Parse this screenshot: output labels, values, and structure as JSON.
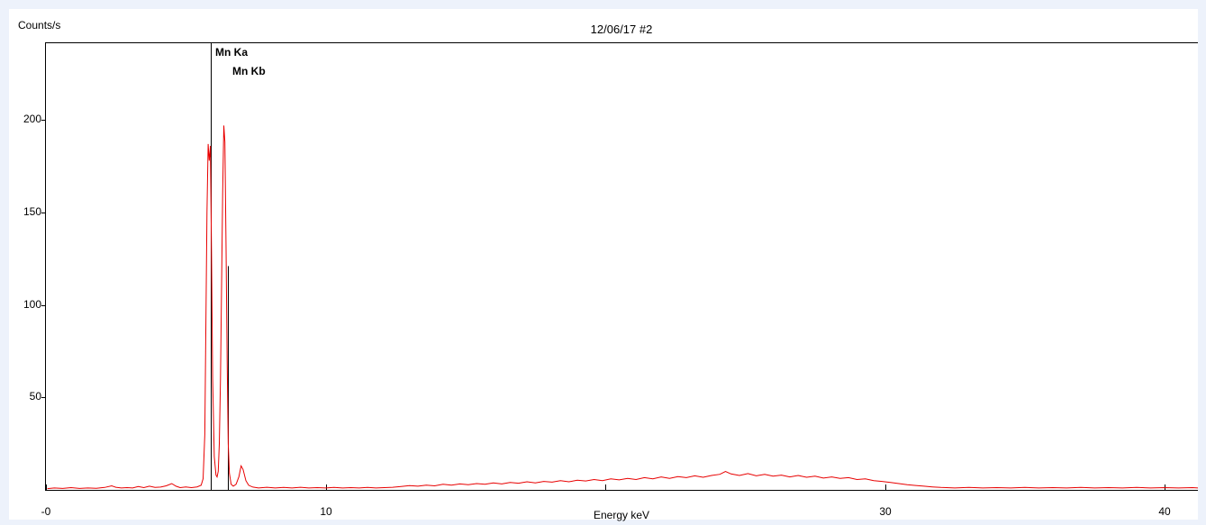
{
  "window": {
    "title": "12/06/17 #2"
  },
  "labels": {
    "y_axis": "Counts/s",
    "x_axis": "Energy keV"
  },
  "colors": {
    "background": "#edf2fb",
    "panel": "#ffffff",
    "axis": "#000000",
    "spectrum_line": "#e80000",
    "marker_line": "#000000",
    "text": "#000000"
  },
  "chart_data": {
    "type": "line",
    "title": "12/06/17 #2",
    "xlabel": "Energy keV",
    "ylabel": "Counts/s",
    "xlim": [
      0,
      41.2
    ],
    "ylim": [
      0,
      242
    ],
    "grid": false,
    "legend": "none",
    "x_ticks": [
      {
        "value": 0,
        "label": "-0"
      },
      {
        "value": 10,
        "label": "10"
      },
      {
        "value": 20,
        "label": ""
      },
      {
        "value": 30,
        "label": "30"
      },
      {
        "value": 40,
        "label": "40"
      }
    ],
    "y_ticks": [
      {
        "value": 50,
        "label": "50"
      },
      {
        "value": 100,
        "label": "100"
      },
      {
        "value": 150,
        "label": "150"
      },
      {
        "value": 200,
        "label": "200"
      }
    ],
    "markers": [
      {
        "label": "Mn Ka",
        "keV": 5.9,
        "top_counts": 242
      },
      {
        "label": "Mn Kb",
        "keV": 6.49,
        "top_counts": 121
      }
    ],
    "series": [
      {
        "name": "spectrum",
        "color": "#e80000",
        "points": [
          [
            0.05,
            0.7
          ],
          [
            0.3,
            1
          ],
          [
            0.6,
            0.8
          ],
          [
            0.9,
            1.2
          ],
          [
            1.2,
            0.8
          ],
          [
            1.5,
            1
          ],
          [
            1.8,
            0.9
          ],
          [
            2.1,
            1.3
          ],
          [
            2.35,
            2.2
          ],
          [
            2.5,
            1.4
          ],
          [
            2.7,
            1
          ],
          [
            2.9,
            1.2
          ],
          [
            3.1,
            1
          ],
          [
            3.3,
            1.8
          ],
          [
            3.5,
            1.2
          ],
          [
            3.7,
            2
          ],
          [
            3.9,
            1.3
          ],
          [
            4.1,
            1.5
          ],
          [
            4.3,
            2.2
          ],
          [
            4.5,
            3.4
          ],
          [
            4.65,
            2
          ],
          [
            4.8,
            1.2
          ],
          [
            5,
            1.6
          ],
          [
            5.2,
            1.2
          ],
          [
            5.4,
            1.6
          ],
          [
            5.55,
            2.5
          ],
          [
            5.62,
            6
          ],
          [
            5.68,
            30
          ],
          [
            5.72,
            90
          ],
          [
            5.76,
            150
          ],
          [
            5.8,
            187
          ],
          [
            5.84,
            178
          ],
          [
            5.88,
            186
          ],
          [
            5.92,
            130
          ],
          [
            5.96,
            60
          ],
          [
            6.02,
            18
          ],
          [
            6.08,
            8
          ],
          [
            6.12,
            7
          ],
          [
            6.16,
            10
          ],
          [
            6.2,
            25
          ],
          [
            6.24,
            60
          ],
          [
            6.28,
            110
          ],
          [
            6.32,
            160
          ],
          [
            6.36,
            197
          ],
          [
            6.4,
            188
          ],
          [
            6.44,
            130
          ],
          [
            6.48,
            70
          ],
          [
            6.52,
            25
          ],
          [
            6.56,
            9
          ],
          [
            6.62,
            3
          ],
          [
            6.7,
            2
          ],
          [
            6.8,
            3
          ],
          [
            6.9,
            7
          ],
          [
            6.98,
            13
          ],
          [
            7.05,
            11
          ],
          [
            7.15,
            5
          ],
          [
            7.25,
            2.5
          ],
          [
            7.4,
            1.5
          ],
          [
            7.6,
            1
          ],
          [
            7.9,
            1.4
          ],
          [
            8.2,
            1
          ],
          [
            8.5,
            1.3
          ],
          [
            8.8,
            1
          ],
          [
            9.1,
            1.4
          ],
          [
            9.4,
            1
          ],
          [
            9.7,
            1.2
          ],
          [
            10,
            1
          ],
          [
            10.3,
            1.3
          ],
          [
            10.6,
            1
          ],
          [
            10.9,
            1.2
          ],
          [
            11.2,
            1
          ],
          [
            11.5,
            1.3
          ],
          [
            11.8,
            1
          ],
          [
            12.1,
            1.2
          ],
          [
            12.4,
            1.4
          ],
          [
            12.7,
            1.8
          ],
          [
            13,
            2.3
          ],
          [
            13.3,
            2
          ],
          [
            13.6,
            2.6
          ],
          [
            13.9,
            2.2
          ],
          [
            14.2,
            3
          ],
          [
            14.5,
            2.6
          ],
          [
            14.8,
            3.2
          ],
          [
            15.1,
            2.8
          ],
          [
            15.4,
            3.4
          ],
          [
            15.7,
            3
          ],
          [
            16,
            3.8
          ],
          [
            16.3,
            3.2
          ],
          [
            16.6,
            4
          ],
          [
            16.9,
            3.6
          ],
          [
            17.2,
            4.4
          ],
          [
            17.5,
            3.8
          ],
          [
            17.8,
            4.6
          ],
          [
            18.1,
            4.2
          ],
          [
            18.4,
            5
          ],
          [
            18.7,
            4.4
          ],
          [
            19,
            5.2
          ],
          [
            19.3,
            4.8
          ],
          [
            19.6,
            5.6
          ],
          [
            19.9,
            5
          ],
          [
            20.2,
            6
          ],
          [
            20.5,
            5.4
          ],
          [
            20.8,
            6.2
          ],
          [
            21.1,
            5.6
          ],
          [
            21.4,
            6.6
          ],
          [
            21.7,
            6
          ],
          [
            22,
            7
          ],
          [
            22.3,
            6.2
          ],
          [
            22.6,
            7.2
          ],
          [
            22.9,
            6.6
          ],
          [
            23.2,
            7.6
          ],
          [
            23.5,
            6.8
          ],
          [
            23.8,
            7.8
          ],
          [
            24.1,
            8.4
          ],
          [
            24.3,
            10
          ],
          [
            24.5,
            8.6
          ],
          [
            24.8,
            7.8
          ],
          [
            25.1,
            8.8
          ],
          [
            25.4,
            7.6
          ],
          [
            25.7,
            8.4
          ],
          [
            26,
            7.4
          ],
          [
            26.3,
            8
          ],
          [
            26.6,
            7
          ],
          [
            26.9,
            7.8
          ],
          [
            27.2,
            6.8
          ],
          [
            27.5,
            7.4
          ],
          [
            27.8,
            6.4
          ],
          [
            28.1,
            7
          ],
          [
            28.4,
            6.2
          ],
          [
            28.7,
            6.6
          ],
          [
            29,
            5.6
          ],
          [
            29.3,
            6
          ],
          [
            29.6,
            5
          ],
          [
            29.9,
            4.6
          ],
          [
            30.2,
            4
          ],
          [
            30.5,
            3.4
          ],
          [
            30.8,
            2.8
          ],
          [
            31.1,
            2.4
          ],
          [
            31.4,
            2
          ],
          [
            31.7,
            1.6
          ],
          [
            32,
            1.3
          ],
          [
            32.5,
            1
          ],
          [
            33,
            1.3
          ],
          [
            33.5,
            1
          ],
          [
            34,
            1.2
          ],
          [
            34.5,
            1
          ],
          [
            35,
            1.3
          ],
          [
            35.5,
            1
          ],
          [
            36,
            1.2
          ],
          [
            36.5,
            1
          ],
          [
            37,
            1.3
          ],
          [
            37.5,
            1
          ],
          [
            38,
            1.2
          ],
          [
            38.5,
            1
          ],
          [
            39,
            1.3
          ],
          [
            39.5,
            1
          ],
          [
            40,
            1.2
          ],
          [
            40.5,
            1
          ],
          [
            41,
            1.2
          ],
          [
            41.2,
            1
          ]
        ]
      }
    ]
  }
}
